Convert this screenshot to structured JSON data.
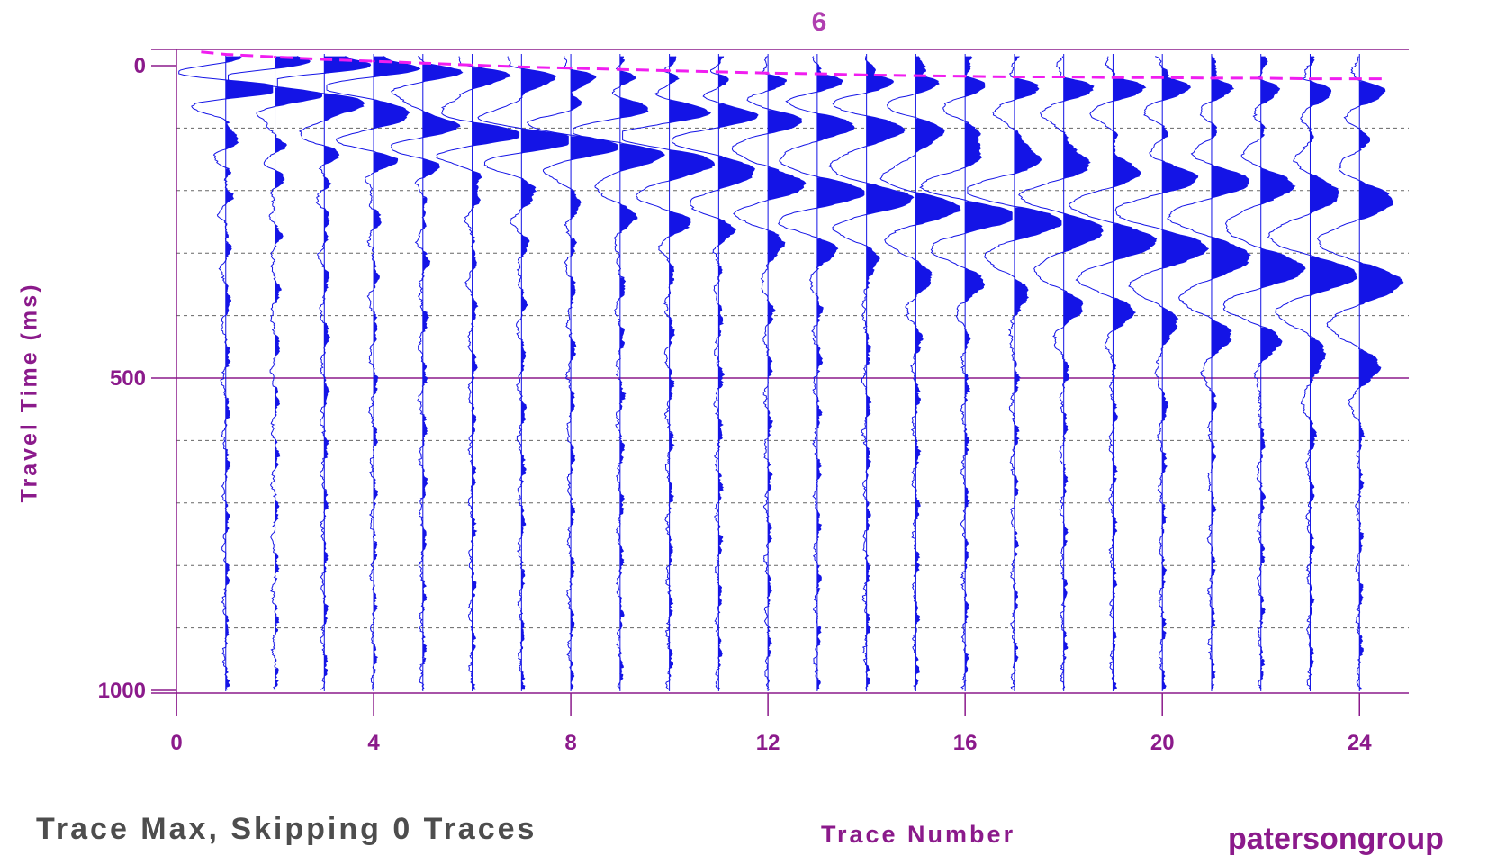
{
  "colors": {
    "axis": "#8b1a8b",
    "label_text": "#8b1a8b",
    "title_text": "#b03fb0",
    "trace": "#1414e6",
    "first_break_pick": "#f01ef0",
    "subtitle_text": "#4d4d4d",
    "dashed_grid": "#666666"
  },
  "chart_data": {
    "type": "seismogram",
    "title": "6",
    "xlabel": "Trace Number",
    "ylabel": "Travel Time (ms)",
    "xlim": [
      0,
      25
    ],
    "ylim": [
      0,
      1000
    ],
    "y_inverted": true,
    "x_ticks": [
      0,
      4,
      8,
      12,
      16,
      20,
      24
    ],
    "y_ticks": [
      0,
      500,
      1000
    ],
    "y_minor_grid": [
      100,
      200,
      300,
      400,
      600,
      700,
      800,
      900
    ],
    "grid": true,
    "trace_numbers": [
      1,
      2,
      3,
      4,
      5,
      6,
      7,
      8,
      9,
      10,
      11,
      12,
      13,
      14,
      15,
      16,
      17,
      18,
      19,
      20,
      21,
      22,
      23,
      24
    ],
    "first_break_pick_ms": [
      -18,
      -14,
      -10,
      -7,
      -4,
      -1,
      2,
      4,
      6,
      8,
      10,
      12,
      13,
      15,
      16,
      17,
      18,
      18,
      19,
      19,
      20,
      20,
      21,
      21
    ],
    "surface_wave_arrival_ms": [
      28,
      40,
      53,
      66,
      79,
      92,
      105,
      118,
      131,
      144,
      157,
      170,
      183,
      196,
      209,
      222,
      235,
      248,
      261,
      274,
      287,
      300,
      313,
      326
    ],
    "trace_display_mode": "Trace Max, Skipping 0 Traces"
  },
  "labels": {
    "title": "6",
    "ylabel": "Travel Time (ms)",
    "xlabel": "Trace Number",
    "mode_text": "Trace Max, Skipping 0 Traces",
    "brand": "patersongroup"
  }
}
